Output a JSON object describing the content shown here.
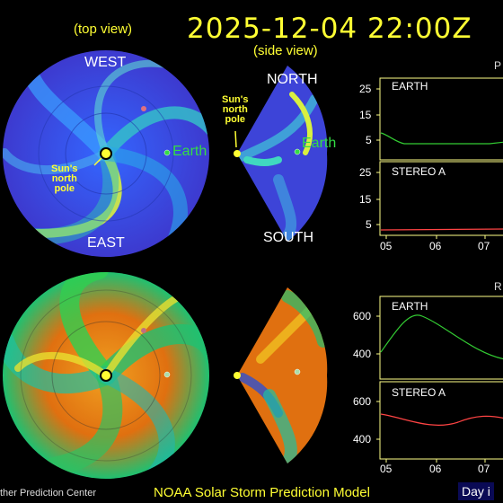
{
  "header": {
    "datetime": "2025-12-04  22:00Z",
    "top_view_label": "(top view)",
    "side_view_label": "(side view)"
  },
  "top_view": {
    "west": "WEST",
    "east": "EAST",
    "sun_label": [
      "Sun's",
      "north",
      "pole"
    ],
    "earth_label": "Earth"
  },
  "side_view": {
    "north": "NORTH",
    "south": "SOUTH",
    "sun_label": [
      "Sun's",
      "north",
      "pole"
    ],
    "earth_label": "Earth"
  },
  "plots": {
    "top_header_fragment": "P",
    "bottom_header_fragment": "R",
    "density_earth": {
      "label": "EARTH",
      "yticks": [
        "25",
        "15",
        "5"
      ]
    },
    "density_stereo": {
      "label": "STEREO A",
      "yticks": [
        "25",
        "15",
        "5"
      ]
    },
    "velocity_earth": {
      "label": "EARTH",
      "yticks": [
        "600",
        "400"
      ]
    },
    "velocity_stereo": {
      "label": "STEREO A",
      "yticks": [
        "600",
        "400"
      ]
    },
    "x_ticks": [
      "05",
      "06",
      "07"
    ]
  },
  "footer": {
    "left": "ther Prediction Center",
    "center": "NOAA Solar Storm Prediction Model",
    "right": "Day i"
  },
  "colors": {
    "accent_yellow": "#ffff33",
    "earth_green": "#33dd44",
    "density_line": "#33cc33",
    "stereo_line": "#ff4444",
    "plot_frame": "#ffff88"
  }
}
